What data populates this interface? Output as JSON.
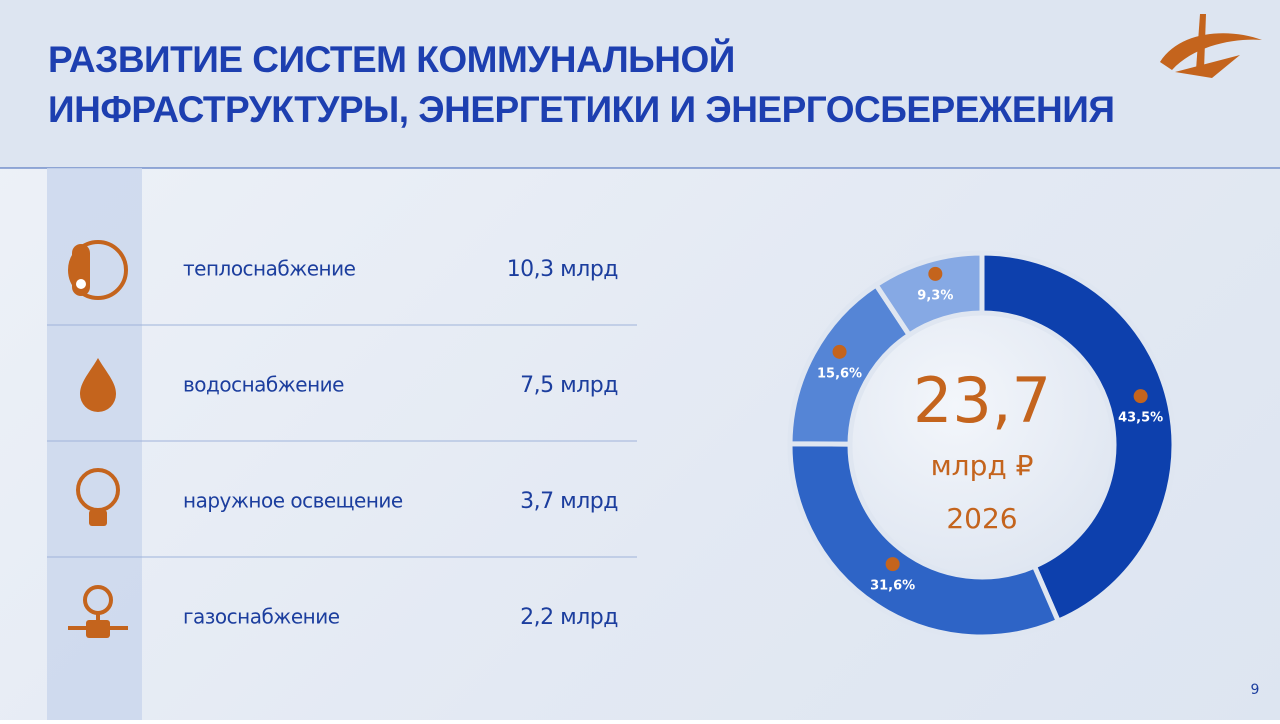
{
  "header": {
    "title_lines": [
      "РАЗВИТИЕ СИСТЕМ КОММУНАЛЬНОЙ",
      "ИНФРАСТРУКТУРЫ, ЭНЕРГЕТИКИ И ЭНЕРГОСБЕРЕЖЕНИЯ"
    ]
  },
  "items": [
    {
      "label": "теплоснабжение",
      "amount": "10,3 млрд"
    },
    {
      "label": "водоснабжение",
      "amount": "7,5 млрд"
    },
    {
      "label": "наружное освещение",
      "amount": "3,7 млрд"
    },
    {
      "label": "газоснабжение",
      "amount": "2,2 млрд"
    }
  ],
  "chart_data": {
    "type": "donut",
    "values": [
      43.5,
      31.6,
      15.6,
      9.3
    ],
    "value_labels": [
      "43,5%",
      "31,6%",
      "15,6%",
      "9,3%"
    ],
    "colors": [
      "#0d40ad",
      "#2e64c6",
      "#5585d6",
      "#86a9e4"
    ],
    "center_value": "23,7",
    "center_unit": "млрд ₽",
    "center_year": "2026"
  },
  "page_number": "9"
}
